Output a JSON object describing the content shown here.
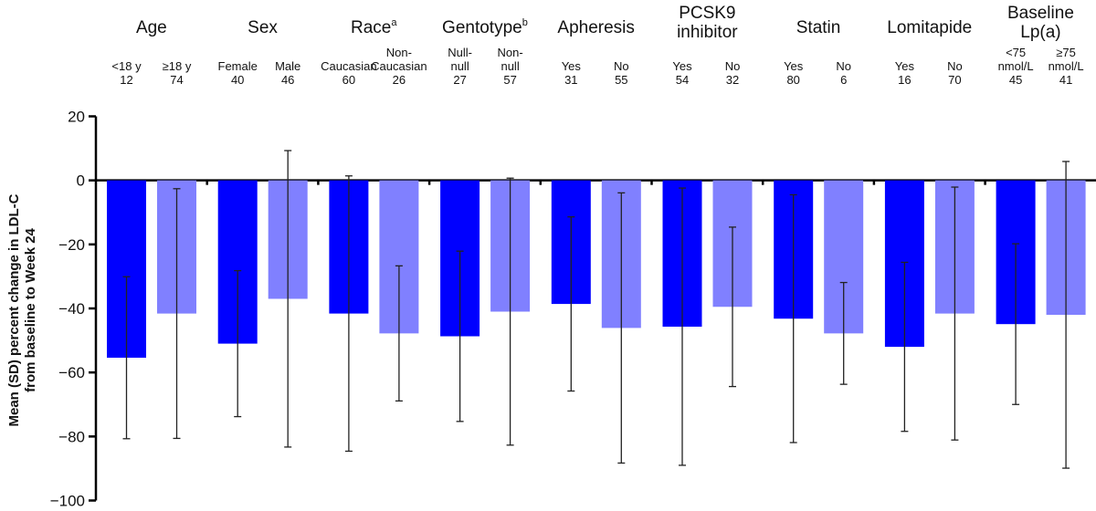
{
  "chart_data": {
    "type": "bar",
    "ylabel": [
      "Mean (SD) percent change in LDL-C",
      "from baseline to Week 24"
    ],
    "ylim": [
      -100,
      20
    ],
    "yticks": [
      20,
      0,
      -20,
      -40,
      -60,
      -80,
      -100
    ],
    "ytick_labels": [
      "20",
      "0",
      "−20",
      "−40",
      "−60",
      "−80",
      "−100"
    ],
    "grid": false,
    "colors": {
      "first": "#0000FF",
      "second": "#8080FF"
    },
    "groups": [
      {
        "title": [
          "Age"
        ],
        "sup": "",
        "bars": [
          {
            "label": [
              "<18 y"
            ],
            "n": "12",
            "mean": -55.4,
            "sd": 25.3
          },
          {
            "label": [
              "≥18 y"
            ],
            "n": "74",
            "mean": -41.6,
            "sd": 39.0
          }
        ]
      },
      {
        "title": [
          "Sex"
        ],
        "sup": "",
        "bars": [
          {
            "label": [
              "Female"
            ],
            "n": "40",
            "mean": -51.0,
            "sd": 22.8
          },
          {
            "label": [
              "Male"
            ],
            "n": "46",
            "mean": -37.0,
            "sd": 46.3
          }
        ]
      },
      {
        "title": [
          "Race"
        ],
        "sup": "a",
        "bars": [
          {
            "label": [
              "Caucasian"
            ],
            "n": "60",
            "mean": -41.6,
            "sd": 43.0
          },
          {
            "label": [
              "Non-",
              "Caucasian"
            ],
            "n": "26",
            "mean": -47.8,
            "sd": 21.1
          }
        ]
      },
      {
        "title": [
          "Gentotype"
        ],
        "sup": "b",
        "bars": [
          {
            "label": [
              "Null-",
              "null"
            ],
            "n": "27",
            "mean": -48.7,
            "sd": 26.6
          },
          {
            "label": [
              "Non-",
              "null"
            ],
            "n": "57",
            "mean": -41.0,
            "sd": 41.7
          }
        ]
      },
      {
        "title": [
          "Apheresis"
        ],
        "sup": "",
        "bars": [
          {
            "label": [
              "Yes"
            ],
            "n": "31",
            "mean": -38.6,
            "sd": 27.2
          },
          {
            "label": [
              "No"
            ],
            "n": "55",
            "mean": -46.1,
            "sd": 42.2
          }
        ]
      },
      {
        "title": [
          "PCSK9",
          "inhibitor"
        ],
        "sup": "",
        "bars": [
          {
            "label": [
              "Yes"
            ],
            "n": "54",
            "mean": -45.7,
            "sd": 43.3
          },
          {
            "label": [
              "No"
            ],
            "n": "32",
            "mean": -39.5,
            "sd": 24.9
          }
        ]
      },
      {
        "title": [
          "Statin"
        ],
        "sup": "",
        "bars": [
          {
            "label": [
              "Yes"
            ],
            "n": "80",
            "mean": -43.2,
            "sd": 38.7
          },
          {
            "label": [
              "No"
            ],
            "n": "6",
            "mean": -47.8,
            "sd": 15.9
          }
        ]
      },
      {
        "title": [
          "Lomitapide"
        ],
        "sup": "",
        "bars": [
          {
            "label": [
              "Yes"
            ],
            "n": "16",
            "mean": -52.0,
            "sd": 26.4
          },
          {
            "label": [
              "No"
            ],
            "n": "70",
            "mean": -41.6,
            "sd": 39.5
          }
        ]
      },
      {
        "title": [
          "Baseline",
          "Lp(a)"
        ],
        "sup": "",
        "bars": [
          {
            "label": [
              "<75",
              "nmol/L"
            ],
            "n": "45",
            "mean": -44.9,
            "sd": 25.1
          },
          {
            "label": [
              "≥75",
              "nmol/L"
            ],
            "n": "41",
            "mean": -42.0,
            "sd": 47.9
          }
        ]
      }
    ]
  }
}
